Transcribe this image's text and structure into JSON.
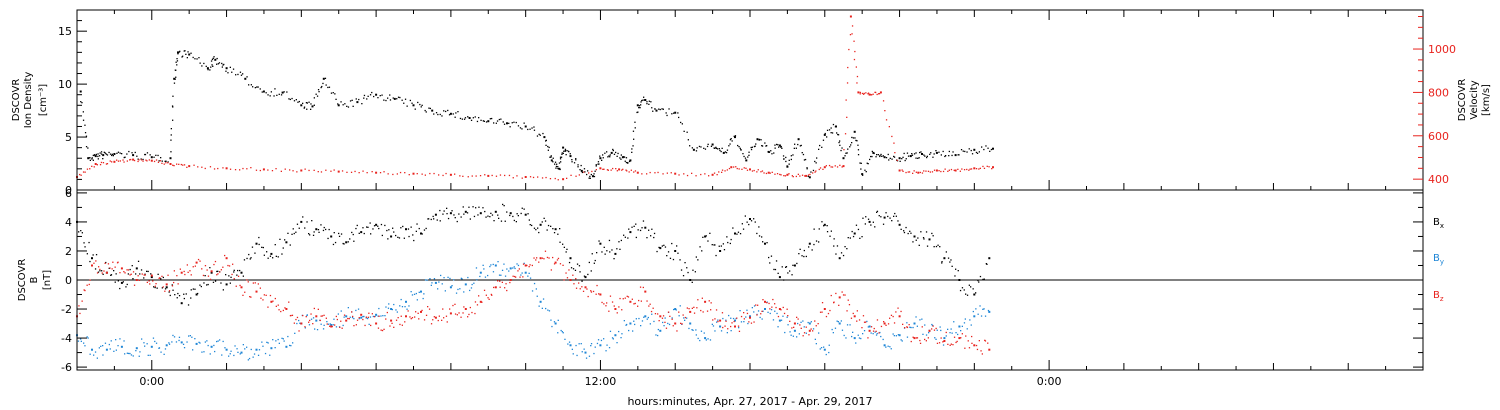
{
  "colors": {
    "black": "#000000",
    "red": "#e8231e",
    "blue": "#1f86d6"
  },
  "xlabel": "hours:minutes, Apr. 27, 2017 - Apr. 29, 2017",
  "x_tick_labels": [
    {
      "label": "0:00",
      "t": 0
    },
    {
      "label": "12:00",
      "t": 12
    },
    {
      "label": "0:00",
      "t": 24
    }
  ],
  "chart_data": [
    {
      "type": "scatter",
      "panel": "top",
      "x_units": "hours since Apr. 27, 2017 0:00",
      "xlim": [
        -2,
        34
      ],
      "left_axis": {
        "label_lines": [
          "DSCOVR",
          "Ion Density",
          "[cm⁻³]"
        ],
        "ylim": [
          0,
          17
        ],
        "ticks": [
          0,
          5,
          10,
          15
        ]
      },
      "right_axis": {
        "label_lines": [
          "DSCOVR",
          "Velocity",
          "[km/s]"
        ],
        "ylim": [
          350,
          1180
        ],
        "ticks": [
          400,
          600,
          800,
          1000
        ]
      },
      "series": [
        {
          "name": "Ion Density",
          "color": "black",
          "axis": "left",
          "x": [
            -1.9,
            -1.7,
            -1.5,
            -1.3,
            -1,
            -0.5,
            0,
            0.5,
            0.6,
            0.7,
            1,
            1.5,
            1.7,
            2,
            2.5,
            3,
            3.5,
            4,
            4.3,
            4.6,
            5,
            5.5,
            6,
            6.5,
            7,
            7.5,
            8,
            8.5,
            9,
            9.5,
            10,
            10.5,
            10.7,
            10.9,
            11,
            11.2,
            11.5,
            11.8,
            12,
            12.3,
            12.6,
            12.8,
            13,
            13.2,
            13.5,
            14,
            14.5,
            15,
            15.3,
            15.6,
            15.9,
            16.2,
            16.5,
            16.8,
            17,
            17.3,
            17.6,
            18,
            18.3,
            18.5,
            18.8,
            19,
            19.3,
            19.6,
            20,
            20.3,
            20.6,
            21,
            21.5,
            22,
            22.5
          ],
          "y": [
            9.3,
            3.0,
            3.2,
            3.3,
            3.4,
            3.3,
            3.1,
            3.0,
            10.5,
            13.0,
            12.8,
            11.5,
            12.3,
            11.5,
            10.5,
            9.3,
            9.2,
            8.0,
            7.9,
            10.5,
            8.0,
            8.3,
            9.0,
            8.6,
            8.0,
            7.5,
            7.2,
            6.8,
            6.5,
            6.3,
            6.0,
            5.0,
            2.8,
            2.0,
            4.0,
            3.2,
            1.8,
            1.3,
            3.0,
            3.5,
            3.1,
            2.8,
            8.0,
            8.5,
            7.5,
            7.3,
            3.8,
            4.3,
            3.5,
            5.0,
            2.8,
            4.8,
            3.6,
            4.2,
            2.2,
            4.8,
            1.2,
            5.2,
            6.0,
            3.0,
            5.5,
            1.5,
            3.5,
            3.1,
            3.0,
            3.2,
            3.4,
            3.5,
            3.3,
            3.8,
            3.9
          ]
        },
        {
          "name": "Velocity",
          "color": "red",
          "axis": "right",
          "x": [
            -2,
            -1.5,
            -1,
            -0.5,
            0,
            0.5,
            1,
            2,
            3,
            4,
            5,
            6,
            7,
            8,
            9,
            10,
            11,
            12,
            12.5,
            13,
            14,
            15,
            15.5,
            16,
            16.5,
            17,
            17.5,
            18,
            18.5,
            18.7,
            18.9,
            19.2,
            19.5,
            20,
            20.5,
            21,
            21.5,
            22,
            22.5
          ],
          "y": [
            410,
            470,
            480,
            490,
            485,
            470,
            460,
            450,
            445,
            440,
            435,
            430,
            425,
            420,
            415,
            410,
            400,
            450,
            445,
            430,
            425,
            420,
            455,
            445,
            430,
            420,
            415,
            455,
            460,
            1150,
            800,
            790,
            800,
            440,
            430,
            440,
            440,
            450,
            455
          ]
        }
      ]
    },
    {
      "type": "scatter",
      "panel": "bottom",
      "x_units": "hours since Apr. 27, 2017 0:00",
      "xlim": [
        -2,
        34
      ],
      "ylim": [
        -6.2,
        6.2
      ],
      "yticks": [
        -6,
        -4,
        -2,
        0,
        2,
        4,
        6
      ],
      "left_axis": {
        "label_lines": [
          "DSCOVR",
          "B",
          "[nT]"
        ]
      },
      "series": [
        {
          "name": "Bx",
          "legend_base": "B",
          "legend_sub": "x",
          "color": "black",
          "x": [
            -2,
            -1.6,
            -1.2,
            -0.8,
            -0.4,
            0,
            0.4,
            0.8,
            1.2,
            1.6,
            2,
            2.4,
            2.8,
            3.2,
            3.6,
            4,
            4.4,
            4.8,
            5.2,
            5.6,
            6,
            6.4,
            6.8,
            7.2,
            7.6,
            8,
            8.4,
            8.8,
            9.2,
            9.6,
            10,
            10.4,
            10.8,
            11.2,
            11.6,
            12,
            12.4,
            12.8,
            13.2,
            13.6,
            14,
            14.4,
            14.8,
            15.2,
            15.6,
            16,
            16.4,
            16.8,
            17.2,
            17.6,
            18,
            18.4,
            18.8,
            19.2,
            19.6,
            20,
            20.4,
            20.8,
            21.2,
            21.6,
            22,
            22.4
          ],
          "y": [
            4.0,
            1.5,
            0.5,
            -0.2,
            0.8,
            0.2,
            -0.5,
            -1.6,
            -1.0,
            0.5,
            -0.3,
            0.5,
            2.5,
            1.8,
            2.6,
            4.0,
            3.5,
            3.0,
            2.6,
            3.3,
            3.8,
            3.0,
            3.5,
            3.2,
            4.5,
            4.6,
            4.7,
            4.6,
            4.7,
            4.6,
            4.5,
            3.8,
            3.5,
            1.5,
            0.2,
            2.5,
            1.8,
            3.3,
            3.6,
            2.2,
            2.0,
            0.0,
            3.0,
            2.0,
            3.2,
            4.2,
            2.5,
            0.2,
            1.0,
            2.5,
            3.8,
            1.5,
            3.2,
            4.0,
            4.3,
            3.8,
            3.0,
            2.8,
            1.5,
            0.0,
            -1.0,
            1.5
          ]
        },
        {
          "name": "By",
          "legend_base": "B",
          "legend_sub": "y",
          "color": "blue",
          "x": [
            -2,
            -1.6,
            -1.2,
            -0.8,
            -0.4,
            0,
            0.4,
            0.8,
            1.2,
            1.6,
            2,
            2.4,
            2.8,
            3.2,
            3.6,
            4,
            4.4,
            4.8,
            5.2,
            5.6,
            6,
            6.4,
            6.8,
            7.2,
            7.6,
            8,
            8.4,
            8.8,
            9.2,
            9.6,
            10,
            10.4,
            10.8,
            11.2,
            11.6,
            12,
            12.4,
            12.8,
            13.2,
            13.6,
            14,
            14.4,
            14.8,
            15.2,
            15.6,
            16,
            16.4,
            16.8,
            17.2,
            17.6,
            18,
            18.4,
            18.8,
            19.2,
            19.6,
            20,
            20.4,
            20.8,
            21.2,
            21.6,
            22,
            22.4
          ],
          "y": [
            -3.8,
            -4.8,
            -4.8,
            -4.6,
            -4.7,
            -4.6,
            -4.5,
            -4.3,
            -4.4,
            -4.6,
            -4.8,
            -5.0,
            -4.8,
            -4.7,
            -4.6,
            -3.0,
            -2.8,
            -3.1,
            -2.5,
            -2.6,
            -2.4,
            -2.0,
            -1.5,
            -0.8,
            -0.2,
            -0.5,
            -0.3,
            0.5,
            1.0,
            0.8,
            0.5,
            -1.5,
            -3.0,
            -4.5,
            -5.0,
            -4.5,
            -3.8,
            -3.0,
            -2.5,
            -3.5,
            -2.0,
            -3.0,
            -4.0,
            -3.2,
            -2.8,
            -2.5,
            -2.0,
            -2.8,
            -3.5,
            -3.0,
            -4.8,
            -3.0,
            -4.0,
            -3.2,
            -4.5,
            -3.8,
            -3.0,
            -3.5,
            -4.0,
            -3.2,
            -2.5,
            -2.2
          ]
        },
        {
          "name": "Bz",
          "legend_base": "B",
          "legend_sub": "z",
          "color": "red",
          "x": [
            -2,
            -1.6,
            -1.2,
            -0.8,
            -0.4,
            0,
            0.4,
            0.8,
            1.2,
            1.6,
            2,
            2.4,
            2.8,
            3.2,
            3.6,
            4,
            4.4,
            4.8,
            5.2,
            5.6,
            6,
            6.4,
            6.8,
            7.2,
            7.6,
            8,
            8.4,
            8.8,
            9.2,
            9.6,
            10,
            10.4,
            10.8,
            11.2,
            11.6,
            12,
            12.4,
            12.8,
            13.2,
            13.6,
            14,
            14.4,
            14.8,
            15.2,
            15.6,
            16,
            16.4,
            16.8,
            17.2,
            17.6,
            18,
            18.4,
            18.8,
            19.2,
            19.6,
            20,
            20.4,
            20.8,
            21.2,
            21.6,
            22,
            22.4
          ],
          "y": [
            -2.5,
            1.0,
            0.5,
            0.8,
            0.0,
            0.3,
            -0.3,
            0.5,
            1.2,
            0.6,
            1.5,
            -0.5,
            -0.8,
            -1.5,
            -2.0,
            -3.0,
            -2.5,
            -3.2,
            -2.8,
            -2.4,
            -3.0,
            -2.8,
            -2.5,
            -2.2,
            -2.6,
            -2.3,
            -2.0,
            -1.5,
            -0.5,
            0.0,
            1.0,
            1.5,
            1.2,
            0.0,
            -0.5,
            -1.0,
            -2.0,
            -1.5,
            -0.8,
            -2.5,
            -3.0,
            -2.2,
            -1.5,
            -2.8,
            -3.2,
            -2.6,
            -1.5,
            -2.0,
            -3.0,
            -3.5,
            -2.0,
            -1.2,
            -2.5,
            -3.5,
            -3.0,
            -2.5,
            -4.0,
            -3.5,
            -4.2,
            -4.0,
            -4.5,
            -4.8
          ]
        }
      ]
    }
  ]
}
